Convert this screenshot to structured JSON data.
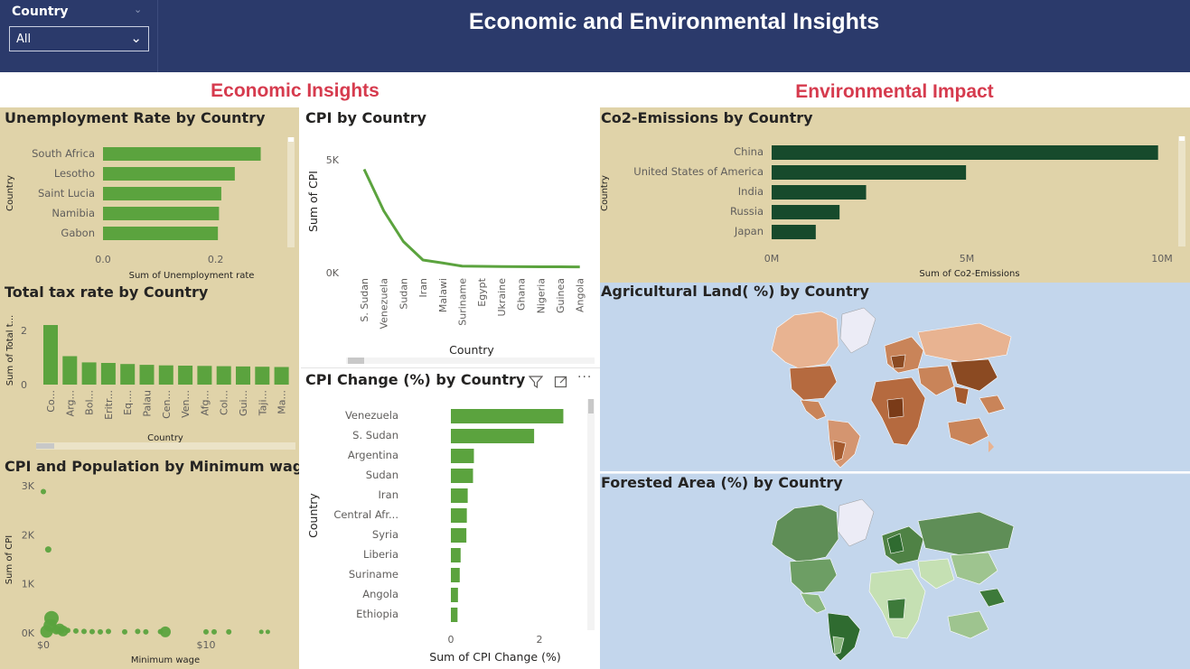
{
  "slicer": {
    "label": "Country",
    "value": "All"
  },
  "title": "Economic and Environmental Insights",
  "sections": {
    "economic": "Economic Insights",
    "environmental": "Environmental Impact"
  },
  "colors": {
    "header": "#2b3a6b",
    "bar_green": "#5ba33e",
    "bar_dark": "#174a2c",
    "tan": "#e0d3a9",
    "map_blue": "#c3d6ec",
    "section_red": "#d63b4e"
  },
  "icons": {
    "filter": "filter-icon",
    "focus": "focus-mode-icon",
    "more": "more-options-icon"
  },
  "unemployment": {
    "title": "Unemployment Rate by Country",
    "chart_data": {
      "type": "bar",
      "categories": [
        "South Africa",
        "Lesotho",
        "Saint Lucia",
        "Namibia",
        "Gabon"
      ],
      "values": [
        0.28,
        0.234,
        0.21,
        0.206,
        0.204
      ],
      "xlabel": "Sum of Unemployment rate",
      "ylabel": "Country",
      "xticks": [
        "0.0",
        "0.2"
      ],
      "xlim": [
        0,
        0.3
      ]
    }
  },
  "tax": {
    "title": "Total tax rate by Country",
    "chart_data": {
      "type": "bar",
      "categories": [
        "Co...",
        "Arg...",
        "Bol...",
        "Eritr...",
        "Eq....",
        "Palau",
        "Cen...",
        "Ven...",
        "Afg...",
        "Col...",
        "Gui...",
        "Taji...",
        "Ma..."
      ],
      "values": [
        2.2,
        1.05,
        0.82,
        0.8,
        0.76,
        0.73,
        0.71,
        0.7,
        0.69,
        0.68,
        0.67,
        0.66,
        0.65
      ],
      "xlabel": "Country",
      "ylabel": "Sum of Total t...",
      "yticks": [
        "0",
        "2"
      ],
      "ylim": [
        0,
        2.7
      ]
    }
  },
  "scatter": {
    "title": "CPI and Population by Minimum wage",
    "chart_data": {
      "type": "scatter",
      "x": [
        0,
        0.3,
        0.5,
        0.4,
        1.0,
        0.8,
        1.2,
        0.2,
        0.6,
        1.5,
        2.0,
        2.5,
        3.0,
        3.5,
        4.0,
        5.0,
        5.8,
        6.3,
        7.2,
        7.5,
        10.0,
        10.5,
        11.4,
        13.4,
        13.8
      ],
      "y": [
        2880,
        1700,
        300,
        150,
        80,
        60,
        40,
        30,
        200,
        50,
        40,
        30,
        25,
        20,
        30,
        20,
        30,
        20,
        25,
        20,
        20,
        20,
        20,
        20,
        20
      ],
      "xlabel": "Minimum wage",
      "ylabel": "Sum of CPI",
      "xticks": [
        "$0",
        "$10"
      ],
      "yticks": [
        "0K",
        "1K",
        "2K",
        "3K"
      ],
      "xlim": [
        0,
        15
      ],
      "ylim": [
        0,
        3000
      ]
    }
  },
  "cpi": {
    "title": "CPI by Country",
    "chart_data": {
      "type": "line",
      "categories": [
        "S. Sudan",
        "Venezuela",
        "Sudan",
        "Iran",
        "Malawi",
        "Suriname",
        "Egypt",
        "Ukraine",
        "Ghana",
        "Nigeria",
        "Guinea",
        "Angola"
      ],
      "values": [
        4580,
        2740,
        1380,
        560,
        430,
        290,
        280,
        270,
        265,
        260,
        258,
        255
      ],
      "xlabel": "Country",
      "ylabel": "Sum of CPI",
      "yticks": [
        "0K",
        "5K"
      ],
      "ylim": [
        0,
        5000
      ]
    }
  },
  "cpi_change": {
    "title": "CPI Change (%) by Country",
    "chart_data": {
      "type": "bar",
      "categories": [
        "Venezuela",
        "S. Sudan",
        "Argentina",
        "Sudan",
        "Iran",
        "Central Afr...",
        "Syria",
        "Liberia",
        "Suriname",
        "Angola",
        "Ethiopia"
      ],
      "values": [
        2.54,
        1.88,
        0.52,
        0.5,
        0.38,
        0.36,
        0.35,
        0.22,
        0.2,
        0.16,
        0.15
      ],
      "xlabel": "Sum of CPI Change (%)",
      "ylabel": "Country",
      "xticks": [
        "0",
        "2"
      ],
      "xlim": [
        0,
        3
      ]
    }
  },
  "co2": {
    "title": "Co2-Emissions by Country",
    "chart_data": {
      "type": "bar",
      "categories": [
        "China",
        "United States of America",
        "India",
        "Russia",
        "Japan"
      ],
      "values": [
        9900000,
        4980000,
        2420000,
        1740000,
        1130000
      ],
      "xlabel": "Sum of Co2-Emissions",
      "ylabel": "Country",
      "xticks": [
        "0M",
        "5M",
        "10M"
      ],
      "xlim": [
        0,
        10000000
      ]
    }
  },
  "agri": {
    "title": "Agricultural Land( %) by Country"
  },
  "forest": {
    "title": "Forested Area (%) by Country"
  }
}
